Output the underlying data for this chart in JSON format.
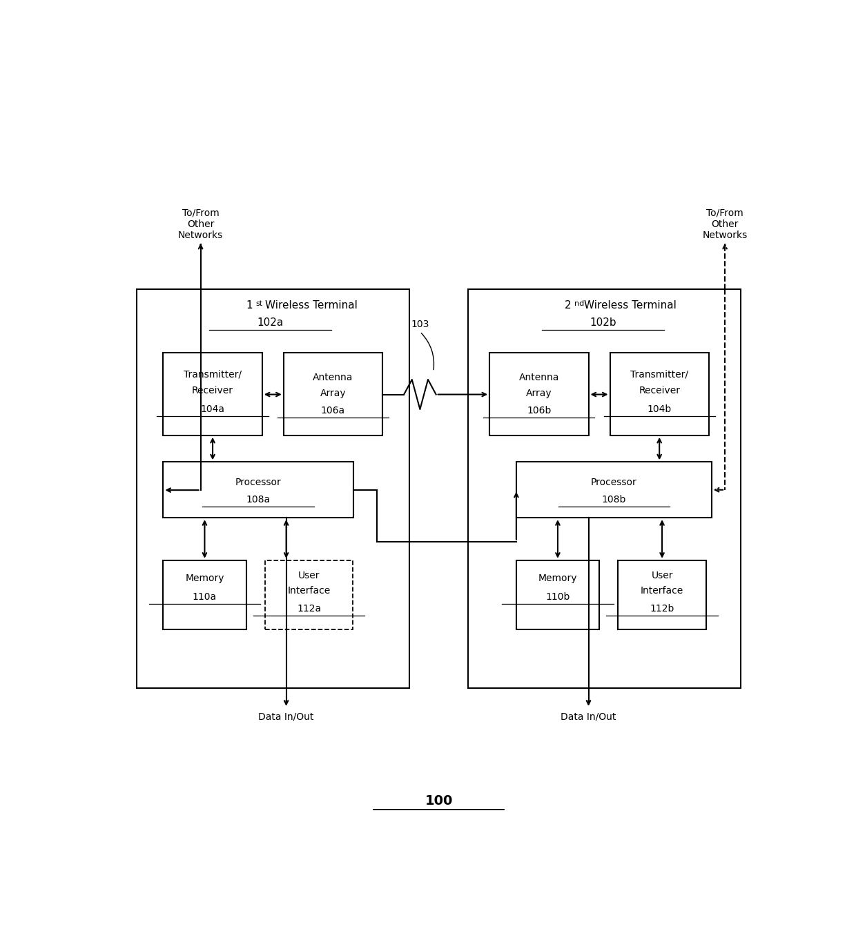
{
  "bg_color": "#ffffff",
  "fig_width": 12.4,
  "fig_height": 13.62,
  "title": "100",
  "left_terminal_label": "1st Wireless Terminal",
  "left_terminal_id": "102a",
  "right_terminal_label": "2nd Wireless Terminal",
  "right_terminal_id": "102b",
  "left_transmitter_id": "104a",
  "left_antenna_id": "106a",
  "right_antenna_id": "106b",
  "right_transmitter_id": "104b",
  "left_processor_id": "108a",
  "right_processor_id": "108b",
  "left_memory_id": "110a",
  "left_ui_id": "112a",
  "right_memory_id": "110b",
  "right_ui_id": "112b",
  "label_103": "103",
  "network_label": "To/From\nOther\nNetworks",
  "data_label": "Data In/Out"
}
